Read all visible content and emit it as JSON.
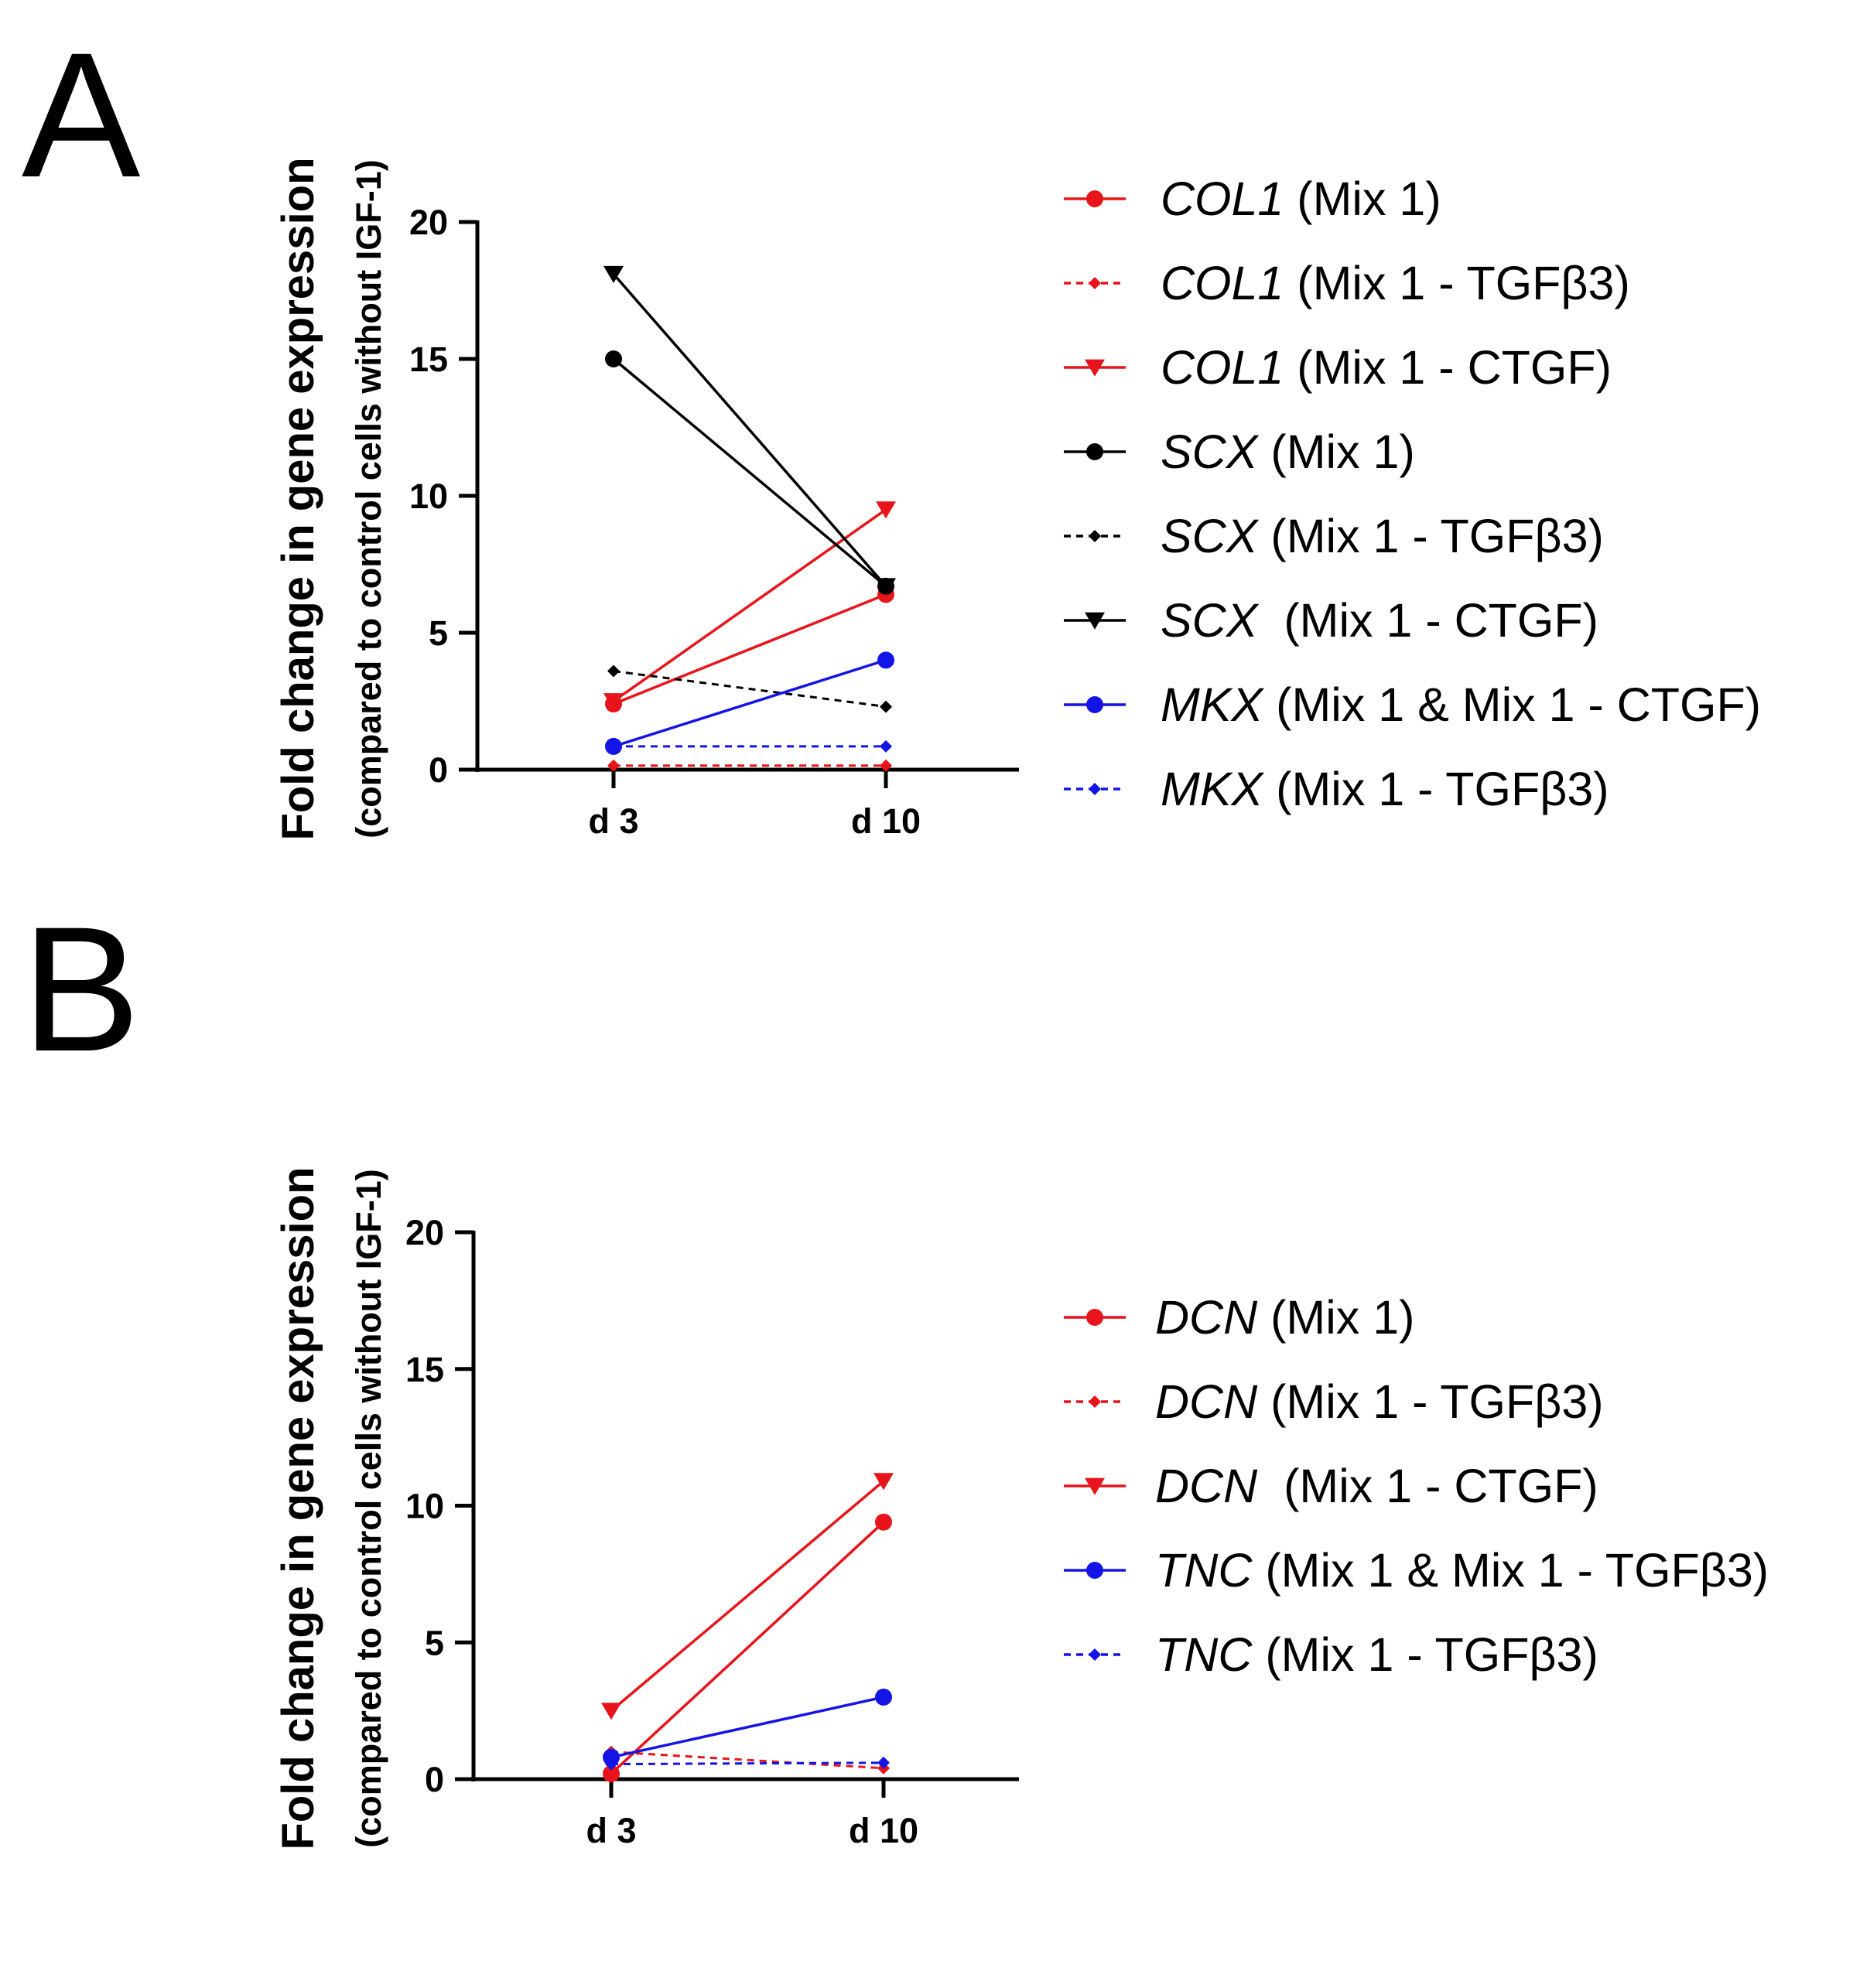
{
  "chart_data": [
    {
      "panel": "A",
      "type": "line",
      "categories": [
        "d 3",
        "d 10"
      ],
      "ylabel": "Fold change in gene expression",
      "ylabel_sub": "(compared to control cells without IGF-1)",
      "ylim": [
        0,
        20
      ],
      "yticks": [
        0,
        5,
        10,
        15,
        20
      ],
      "legend_position": "right",
      "series": [
        {
          "gene": "COL1",
          "rest": " (Mix 1)",
          "name": "COL1 (Mix 1)",
          "color": "#e8141b",
          "dash": "solid",
          "marker": "circle",
          "values": [
            2.4,
            6.4
          ]
        },
        {
          "gene": "COL1",
          "rest": " (Mix 1 - TGFβ3)",
          "name": "COL1 (Mix 1 - TGFβ3)",
          "color": "#e8141b",
          "dash": "dashed",
          "marker": "diamond",
          "values": [
            0.15,
            0.15
          ]
        },
        {
          "gene": "COL1",
          "rest": " (Mix 1 - CTGF)",
          "name": "COL1 (Mix 1 - CTGF)",
          "color": "#e8141b",
          "dash": "solid",
          "marker": "triangle-down",
          "values": [
            2.5,
            9.5
          ]
        },
        {
          "gene": "SCX",
          "rest": " (Mix 1)",
          "name": "SCX (Mix 1)",
          "color": "#000000",
          "dash": "solid",
          "marker": "circle",
          "values": [
            15.0,
            6.7
          ]
        },
        {
          "gene": "SCX",
          "rest": " (Mix 1 - TGFβ3)",
          "name": "SCX (Mix 1 - TGFβ3)",
          "color": "#000000",
          "dash": "dashed",
          "marker": "diamond",
          "values": [
            3.6,
            2.3
          ]
        },
        {
          "gene": "SCX",
          "rest": "  (Mix 1 - CTGF)",
          "name": "SCX  (Mix 1 - CTGF)",
          "color": "#000000",
          "dash": "solid",
          "marker": "triangle-down",
          "values": [
            18.1,
            6.7
          ]
        },
        {
          "gene": "MKX",
          "rest": " (Mix 1 & Mix 1 - CTGF)",
          "name": "MKX (Mix 1 & Mix 1 - CTGF)",
          "color": "#1414e6",
          "dash": "solid",
          "marker": "circle",
          "values": [
            0.85,
            4.0
          ]
        },
        {
          "gene": "MKX",
          "rest": " (Mix 1 - TGFβ3)",
          "name": "MKX (Mix 1 - TGFβ3)",
          "color": "#1414e6",
          "dash": "dashed",
          "marker": "diamond",
          "values": [
            0.85,
            0.85
          ]
        }
      ]
    },
    {
      "panel": "B",
      "type": "line",
      "categories": [
        "d 3",
        "d 10"
      ],
      "ylabel": "Fold change in gene expression",
      "ylabel_sub": "(compared to control cells without IGF-1)",
      "ylim": [
        0,
        20
      ],
      "yticks": [
        0,
        5,
        10,
        15,
        20
      ],
      "legend_position": "right",
      "series": [
        {
          "gene": "DCN",
          "rest": " (Mix 1)",
          "name": "DCN (Mix 1)",
          "color": "#e8141b",
          "dash": "solid",
          "marker": "circle",
          "values": [
            0.2,
            9.4
          ]
        },
        {
          "gene": "DCN",
          "rest": " (Mix 1 - TGFβ3)",
          "name": "DCN (Mix 1 - TGFβ3)",
          "color": "#e8141b",
          "dash": "dashed",
          "marker": "diamond",
          "values": [
            1.0,
            0.4
          ]
        },
        {
          "gene": "DCN",
          "rest": "  (Mix 1 - CTGF)",
          "name": "DCN  (Mix 1 - CTGF)",
          "color": "#e8141b",
          "dash": "solid",
          "marker": "triangle-down",
          "values": [
            2.5,
            10.9
          ]
        },
        {
          "gene": "TNC",
          "rest": " (Mix 1 & Mix 1 - TGFβ3)",
          "name": "TNC (Mix 1 & Mix 1 - TGFβ3)",
          "color": "#1414e6",
          "dash": "solid",
          "marker": "circle",
          "values": [
            0.8,
            3.0
          ]
        },
        {
          "gene": "TNC",
          "rest": " (Mix 1 - TGFβ3)",
          "name": "TNC (Mix 1 - TGFβ3)",
          "color": "#1414e6",
          "dash": "dashed",
          "marker": "diamond",
          "values": [
            0.55,
            0.6
          ]
        }
      ]
    }
  ]
}
